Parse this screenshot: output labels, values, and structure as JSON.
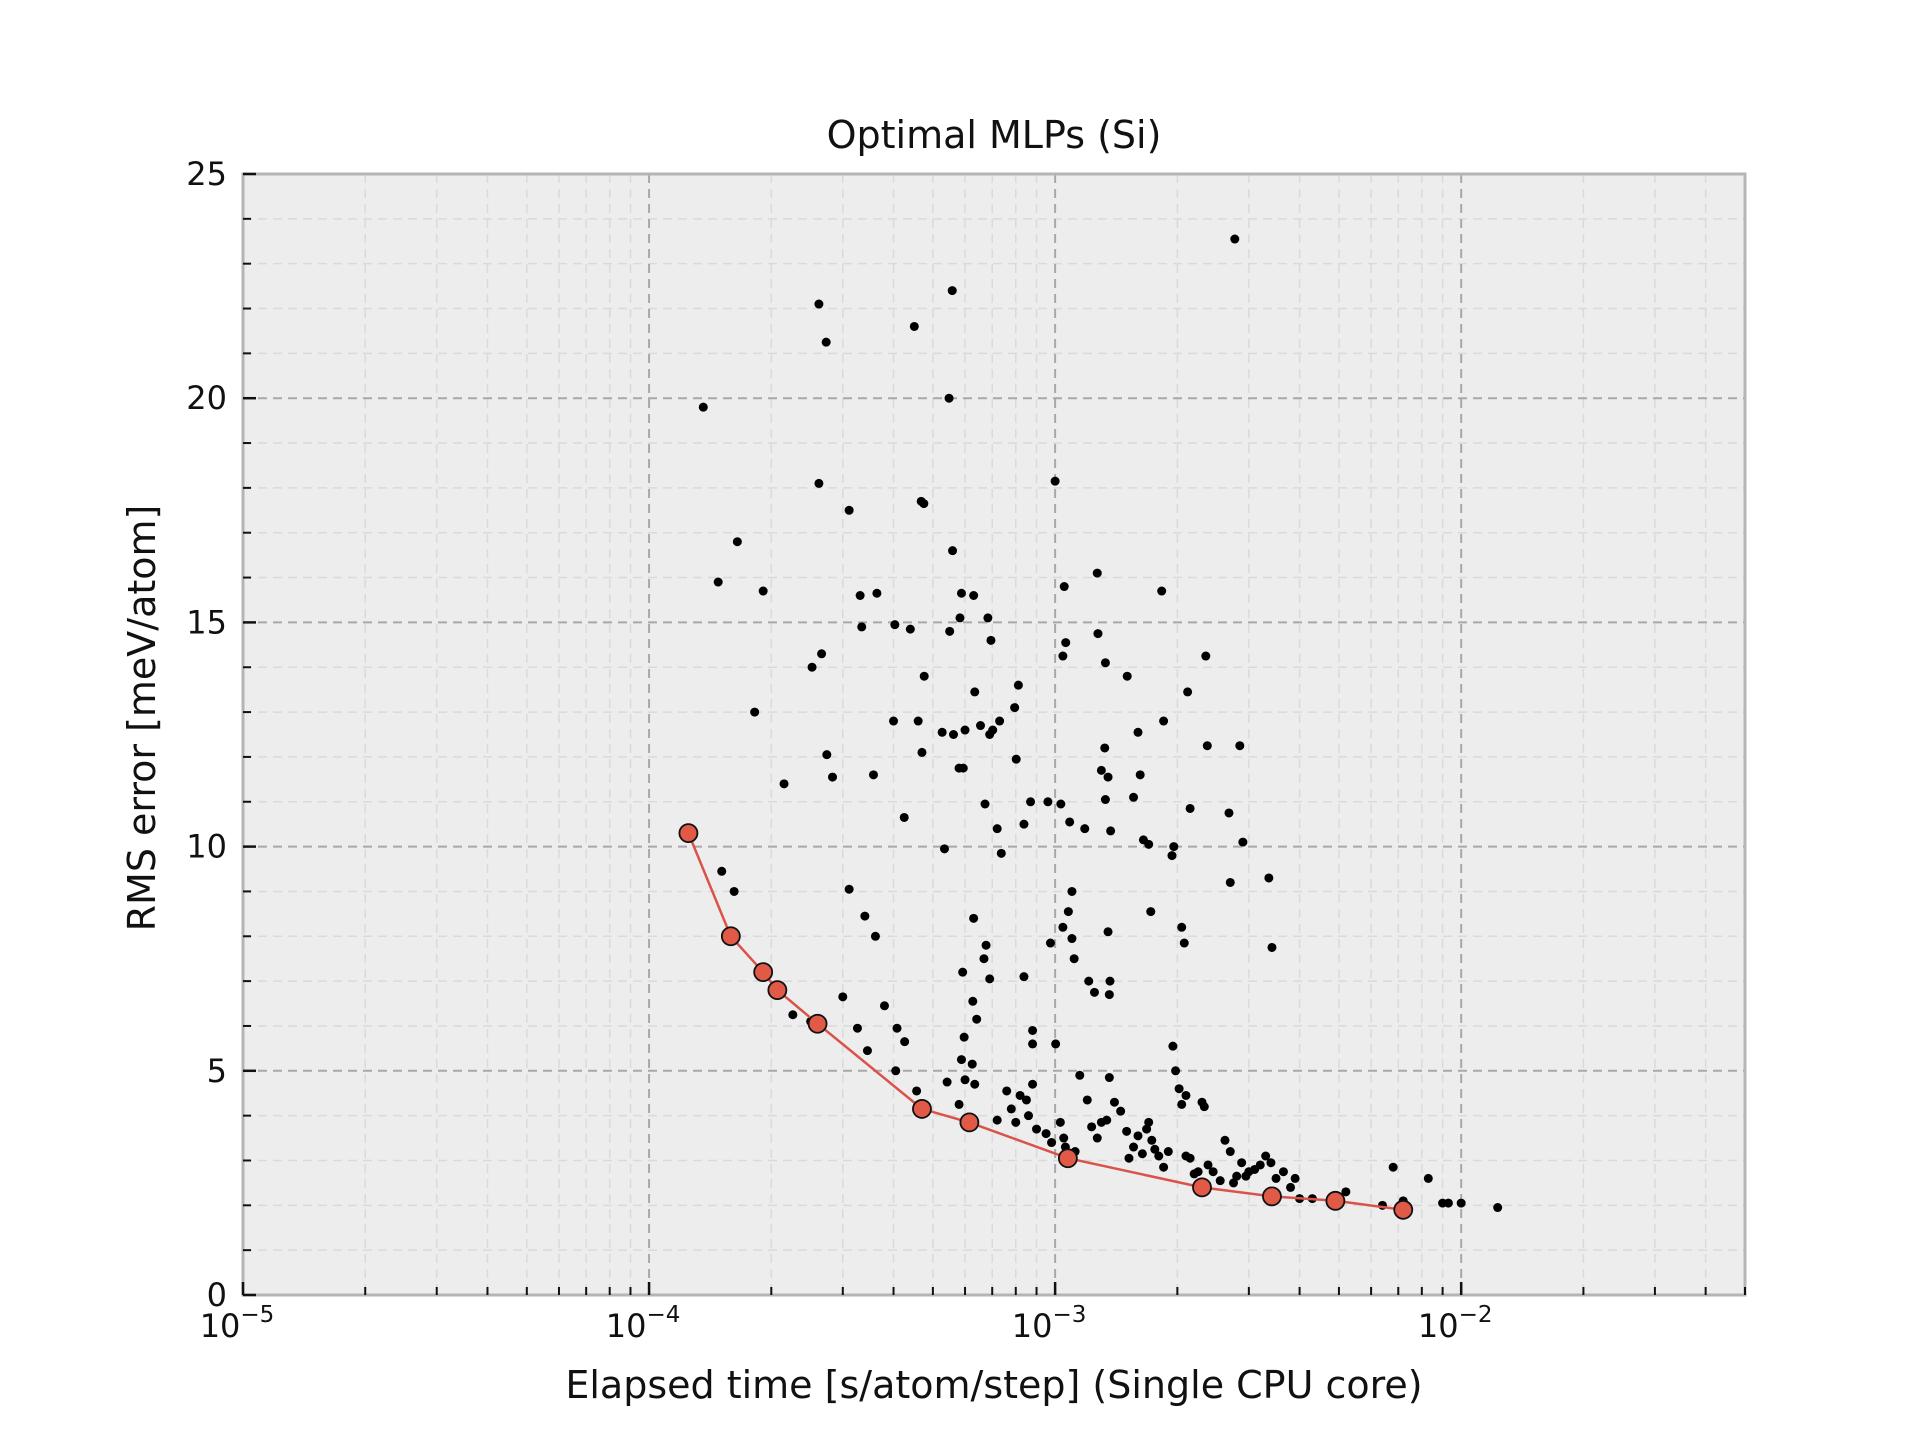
{
  "chart_data": {
    "type": "scatter",
    "title": "Optimal MLPs (Si)",
    "xlabel": "Elapsed time [s/atom/step] (Single CPU core)",
    "ylabel": "RMS error [meV/atom]",
    "xscale": "log",
    "xlim": [
      1e-05,
      0.05
    ],
    "ylim": [
      0,
      25
    ],
    "grid": true,
    "x_ticks": [
      {
        "value": 1e-05,
        "base": "10",
        "exp": "−5"
      },
      {
        "value": 0.0001,
        "base": "10",
        "exp": "−4"
      },
      {
        "value": 0.001,
        "base": "10",
        "exp": "−3"
      },
      {
        "value": 0.01,
        "base": "10",
        "exp": "−2"
      }
    ],
    "y_ticks": [
      {
        "value": 0,
        "label": "0"
      },
      {
        "value": 5,
        "label": "5"
      },
      {
        "value": 10,
        "label": "10"
      },
      {
        "value": 15,
        "label": "15"
      },
      {
        "value": 20,
        "label": "20"
      },
      {
        "value": 25,
        "label": "25"
      }
    ],
    "colors": {
      "background": "#ededed",
      "points": "#000000",
      "pareto_line": "#d9534a",
      "pareto_marker": "#e05a47",
      "grid": "#a8a8a8"
    },
    "series": [
      {
        "kind": "scatter",
        "points": [
          [
            0.000136,
            19.8
          ],
          [
            0.000148,
            15.9
          ],
          [
            0.000165,
            16.8
          ],
          [
            0.000182,
            13.0
          ],
          [
            0.000191,
            15.7
          ],
          [
            0.000151,
            9.45
          ],
          [
            0.000162,
            9.0
          ],
          [
            0.000215,
            11.4
          ],
          [
            0.000252,
            14.0
          ],
          [
            0.000266,
            14.3
          ],
          [
            0.000274,
            12.05
          ],
          [
            0.000283,
            11.55
          ],
          [
            0.000262,
            22.1
          ],
          [
            0.000262,
            18.1
          ],
          [
            0.000273,
            21.25
          ],
          [
            0.000311,
            17.5
          ],
          [
            0.000331,
            15.6
          ],
          [
            0.000334,
            14.9
          ],
          [
            0.000364,
            15.65
          ],
          [
            0.000357,
            11.6
          ],
          [
            0.000311,
            9.05
          ],
          [
            0.00034,
            8.45
          ],
          [
            0.000361,
            8.0
          ],
          [
            0.0003,
            6.65
          ],
          [
            0.000326,
            5.95
          ],
          [
            0.000345,
            5.45
          ],
          [
            0.00038,
            6.45
          ],
          [
            0.000408,
            5.95
          ],
          [
            0.000426,
            5.65
          ],
          [
            0.000405,
            5.0
          ],
          [
            0.000456,
            4.55
          ],
          [
            0.000226,
            6.25
          ],
          [
            0.00025,
            6.1
          ],
          [
            0.000403,
            14.95
          ],
          [
            0.00044,
            14.85
          ],
          [
            0.0004,
            12.8
          ],
          [
            0.00046,
            12.8
          ],
          [
            0.000476,
            13.8
          ],
          [
            0.00047,
            12.1
          ],
          [
            0.000425,
            10.65
          ],
          [
            0.00045,
            21.6
          ],
          [
            0.000468,
            17.7
          ],
          [
            0.000475,
            17.65
          ],
          [
            0.000527,
            12.55
          ],
          [
            0.00055,
            14.8
          ],
          [
            0.000548,
            20.0
          ],
          [
            0.000558,
            22.4
          ],
          [
            0.000559,
            16.6
          ],
          [
            0.000562,
            12.5
          ],
          [
            0.00058,
            11.75
          ],
          [
            0.000594,
            11.75
          ],
          [
            0.000583,
            15.1
          ],
          [
            0.000588,
            15.65
          ],
          [
            0.00063,
            15.6
          ],
          [
            0.0006,
            12.6
          ],
          [
            0.000634,
            13.45
          ],
          [
            0.000655,
            12.7
          ],
          [
            0.000702,
            12.6
          ],
          [
            0.00069,
            12.5
          ],
          [
            0.000683,
            15.1
          ],
          [
            0.000695,
            14.6
          ],
          [
            0.00073,
            12.8
          ],
          [
            0.000795,
            13.1
          ],
          [
            0.000812,
            13.6
          ],
          [
            0.000802,
            11.95
          ],
          [
            0.00087,
            11.0
          ],
          [
            0.00096,
            11.0
          ],
          [
            0.000838,
            10.5
          ],
          [
            0.000672,
            10.95
          ],
          [
            0.00072,
            10.4
          ],
          [
            0.000737,
            9.85
          ],
          [
            0.000534,
            9.95
          ],
          [
            0.00063,
            8.4
          ],
          [
            0.000668,
            7.5
          ],
          [
            0.000676,
            7.8
          ],
          [
            0.00069,
            7.05
          ],
          [
            0.000592,
            7.2
          ],
          [
            0.000627,
            6.55
          ],
          [
            0.000641,
            6.15
          ],
          [
            0.000597,
            5.75
          ],
          [
            0.000588,
            5.25
          ],
          [
            0.000625,
            5.15
          ],
          [
            0.000542,
            4.75
          ],
          [
            0.0006,
            4.8
          ],
          [
            0.000634,
            4.7
          ],
          [
            0.00058,
            4.25
          ],
          [
            0.000838,
            7.1
          ],
          [
            0.00088,
            5.9
          ],
          [
            0.00088,
            5.6
          ],
          [
            0.000974,
            7.85
          ],
          [
            0.001,
            18.15
          ],
          [
            0.001053,
            15.8
          ],
          [
            0.001062,
            14.55
          ],
          [
            0.001045,
            14.25
          ],
          [
            0.001033,
            10.95
          ],
          [
            0.001086,
            10.55
          ],
          [
            0.0011,
            9.0
          ],
          [
            0.001078,
            8.55
          ],
          [
            0.001045,
            8.2
          ],
          [
            0.0011,
            7.95
          ],
          [
            0.001114,
            7.5
          ],
          [
            0.001003,
            5.6
          ],
          [
            0.001183,
            10.4
          ],
          [
            0.00127,
            16.1
          ],
          [
            0.001275,
            14.75
          ],
          [
            0.00133,
            14.1
          ],
          [
            0.001325,
            12.2
          ],
          [
            0.0013,
            11.7
          ],
          [
            0.00135,
            11.55
          ],
          [
            0.00133,
            11.05
          ],
          [
            0.00137,
            10.35
          ],
          [
            0.00135,
            8.1
          ],
          [
            0.00121,
            7.0
          ],
          [
            0.00125,
            6.75
          ],
          [
            0.001365,
            7.0
          ],
          [
            0.00136,
            6.7
          ],
          [
            0.001505,
            13.8
          ],
          [
            0.0016,
            12.55
          ],
          [
            0.00162,
            11.6
          ],
          [
            0.00156,
            11.1
          ],
          [
            0.00165,
            10.15
          ],
          [
            0.0017,
            10.05
          ],
          [
            0.00172,
            8.55
          ],
          [
            0.00183,
            15.7
          ],
          [
            0.00185,
            12.8
          ],
          [
            0.00196,
            10.0
          ],
          [
            0.00194,
            9.8
          ],
          [
            0.00205,
            8.2
          ],
          [
            0.00208,
            7.85
          ],
          [
            0.00212,
            13.45
          ],
          [
            0.00215,
            10.85
          ],
          [
            0.00235,
            14.25
          ],
          [
            0.00237,
            12.25
          ],
          [
            0.00268,
            10.75
          ],
          [
            0.0027,
            9.2
          ],
          [
            0.00277,
            23.55
          ],
          [
            0.00285,
            12.25
          ],
          [
            0.0029,
            10.1
          ],
          [
            0.00336,
            9.3
          ],
          [
            0.00342,
            7.75
          ],
          [
            0.00076,
            4.55
          ],
          [
            0.00078,
            4.15
          ],
          [
            0.0008,
            3.85
          ],
          [
            0.00082,
            4.45
          ],
          [
            0.00085,
            4.35
          ],
          [
            0.00088,
            4.7
          ],
          [
            0.0009,
            3.7
          ],
          [
            0.00086,
            4.0
          ],
          [
            0.00095,
            3.6
          ],
          [
            0.00103,
            3.85
          ],
          [
            0.00105,
            3.5
          ],
          [
            0.00106,
            3.3
          ],
          [
            0.00115,
            4.9
          ],
          [
            0.0012,
            4.35
          ],
          [
            0.00123,
            3.75
          ],
          [
            0.00127,
            3.5
          ],
          [
            0.0013,
            3.85
          ],
          [
            0.00134,
            3.9
          ],
          [
            0.00136,
            4.85
          ],
          [
            0.0014,
            4.3
          ],
          [
            0.00145,
            4.1
          ],
          [
            0.0015,
            3.65
          ],
          [
            0.00152,
            3.05
          ],
          [
            0.00156,
            3.3
          ],
          [
            0.0016,
            3.55
          ],
          [
            0.00164,
            3.15
          ],
          [
            0.00168,
            3.7
          ],
          [
            0.0017,
            3.85
          ],
          [
            0.00173,
            3.45
          ],
          [
            0.00176,
            3.25
          ],
          [
            0.0018,
            3.1
          ],
          [
            0.00185,
            2.85
          ],
          [
            0.00195,
            5.55
          ],
          [
            0.00198,
            5.0
          ],
          [
            0.00202,
            4.6
          ],
          [
            0.00205,
            4.25
          ],
          [
            0.0021,
            4.45
          ],
          [
            0.00215,
            3.05
          ],
          [
            0.0022,
            2.7
          ],
          [
            0.00225,
            2.75
          ],
          [
            0.0023,
            4.3
          ],
          [
            0.00233,
            4.2
          ],
          [
            0.00238,
            2.9
          ],
          [
            0.00245,
            2.75
          ],
          [
            0.00255,
            2.55
          ],
          [
            0.00262,
            3.45
          ],
          [
            0.0027,
            3.2
          ],
          [
            0.00275,
            2.5
          ],
          [
            0.0028,
            2.65
          ],
          [
            0.00288,
            2.95
          ],
          [
            0.00295,
            2.65
          ],
          [
            0.003,
            2.75
          ],
          [
            0.0031,
            2.8
          ],
          [
            0.0032,
            2.9
          ],
          [
            0.0033,
            3.1
          ],
          [
            0.0034,
            2.95
          ],
          [
            0.0035,
            2.6
          ],
          [
            0.00365,
            2.75
          ],
          [
            0.0038,
            2.4
          ],
          [
            0.0039,
            2.6
          ],
          [
            0.004,
            2.15
          ],
          [
            0.0043,
            2.15
          ],
          [
            0.0052,
            2.3
          ],
          [
            0.0068,
            2.85
          ],
          [
            0.0072,
            2.1
          ],
          [
            0.0083,
            2.6
          ],
          [
            0.009,
            2.05
          ],
          [
            0.0093,
            2.05
          ],
          [
            0.01,
            2.05
          ],
          [
            0.0123,
            1.95
          ],
          [
            0.0064,
            2.0
          ],
          [
            0.0021,
            3.1
          ],
          [
            0.0019,
            3.2
          ],
          [
            0.00098,
            3.4
          ],
          [
            0.00112,
            3.2
          ],
          [
            0.00072,
            3.9
          ]
        ]
      },
      {
        "kind": "pareto_line",
        "points": [
          [
            0.000125,
            10.3
          ],
          [
            0.000159,
            8.0
          ],
          [
            0.000191,
            7.2
          ],
          [
            0.000207,
            6.8
          ],
          [
            0.00026,
            6.05
          ],
          [
            0.00047,
            4.15
          ],
          [
            0.000615,
            3.85
          ],
          [
            0.001075,
            3.05
          ],
          [
            0.0023,
            2.4
          ],
          [
            0.00342,
            2.2
          ],
          [
            0.0049,
            2.1
          ],
          [
            0.0072,
            1.9
          ]
        ]
      }
    ]
  }
}
